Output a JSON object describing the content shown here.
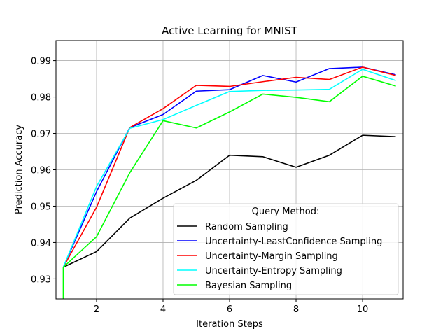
{
  "chart_data": {
    "type": "line",
    "title": "Active Learning for MNIST",
    "xlabel": "Iteration Steps",
    "ylabel": "Prediction Accuracy",
    "xlim": [
      0.78,
      11.22
    ],
    "ylim": [
      0.9245,
      0.9955
    ],
    "xticks": [
      2,
      4,
      6,
      8,
      10
    ],
    "yticks": [
      0.93,
      0.94,
      0.95,
      0.96,
      0.97,
      0.98,
      0.99
    ],
    "grid": true,
    "legend": {
      "title": "Query Method:",
      "placement": "lower-right"
    },
    "x": [
      1,
      2,
      3,
      4,
      5,
      6,
      7,
      8,
      9,
      10,
      11
    ],
    "series": [
      {
        "name": "Random Sampling",
        "color": "#000000",
        "values": [
          0.9332,
          0.9375,
          0.9467,
          0.9522,
          0.9571,
          0.964,
          0.9636,
          0.9607,
          0.964,
          0.9695,
          0.9691
        ]
      },
      {
        "name": "Uncertainty-LeastConfidence Sampling",
        "color": "#0000ff",
        "values": [
          0.9332,
          0.954,
          0.9716,
          0.9752,
          0.9816,
          0.982,
          0.9859,
          0.9841,
          0.9878,
          0.9882,
          0.9861
        ]
      },
      {
        "name": "Uncertainty-Margin Sampling",
        "color": "#ff0000",
        "values": [
          0.9332,
          0.9497,
          0.9716,
          0.9768,
          0.9832,
          0.9829,
          0.9842,
          0.9854,
          0.9848,
          0.9882,
          0.9859
        ]
      },
      {
        "name": "Uncertainty-Entropy Sampling",
        "color": "#00ffff",
        "values": [
          0.9332,
          0.9554,
          0.9714,
          0.9738,
          0.9777,
          0.9815,
          0.9818,
          0.9819,
          0.9821,
          0.9876,
          0.9845
        ]
      },
      {
        "name": "Bayesian Sampling",
        "color": "#00ff00",
        "values": [
          0.9332,
          0.9416,
          0.9592,
          0.9735,
          0.9715,
          0.9759,
          0.9808,
          0.9799,
          0.9787,
          0.9857,
          0.983
        ],
        "start_min": 0.9245
      }
    ]
  }
}
